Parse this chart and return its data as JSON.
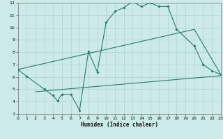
{
  "bg_color": "#cceae8",
  "grid_color": "#aad4d0",
  "line_color": "#2a7a6a",
  "xlabel": "Humidex (Indice chaleur)",
  "xlim": [
    0,
    23
  ],
  "ylim": [
    3,
    12
  ],
  "xticks": [
    0,
    1,
    2,
    3,
    4,
    5,
    6,
    7,
    8,
    9,
    10,
    11,
    12,
    13,
    14,
    15,
    16,
    17,
    18,
    19,
    20,
    21,
    22,
    23
  ],
  "yticks": [
    3,
    4,
    5,
    6,
    7,
    8,
    9,
    10,
    11,
    12
  ],
  "line1_x": [
    0,
    1,
    3,
    4,
    4.5,
    5,
    6,
    7,
    8,
    9,
    10,
    11,
    12,
    13,
    14,
    15,
    16,
    17,
    18,
    20,
    21,
    22,
    23
  ],
  "line1_y": [
    6.6,
    6.05,
    5.0,
    4.5,
    4.05,
    4.6,
    4.6,
    3.3,
    8.05,
    6.4,
    10.4,
    11.3,
    11.6,
    12.1,
    11.7,
    12.0,
    11.7,
    11.7,
    9.85,
    8.5,
    7.0,
    6.5,
    6.2
  ],
  "line2_x": [
    0,
    20,
    23
  ],
  "line2_y": [
    6.6,
    9.85,
    6.2
  ],
  "line3_x": [
    2,
    23
  ],
  "line3_y": [
    4.8,
    6.1
  ]
}
